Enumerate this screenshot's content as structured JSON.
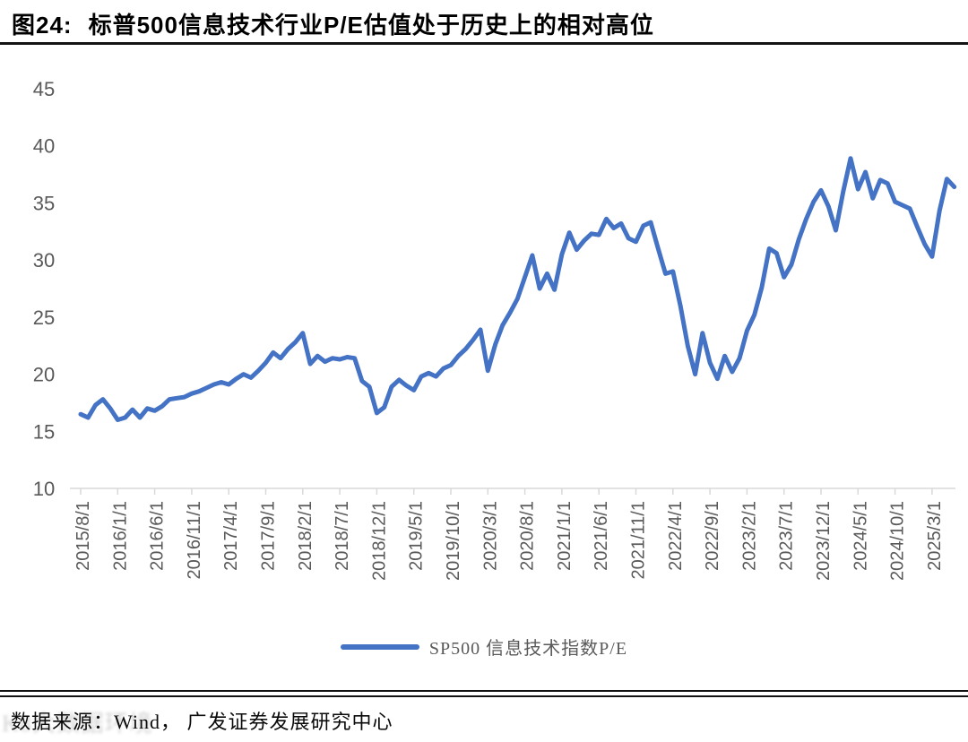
{
  "header": {
    "figure_label": "图24:",
    "title": "标普500信息技术行业P/E估值处于历史上的相对高位"
  },
  "legend": {
    "label": "SP500  信息技术指数P/E"
  },
  "footer": {
    "source": "数据来源：Wind， 广发证券发展研究中心"
  },
  "watermark": {
    "text": "K8大数据环境"
  },
  "chart_data": {
    "type": "line",
    "title": "标普500信息技术行业P/E估值处于历史上的相对高位",
    "xlabel": "",
    "ylabel": "",
    "ylim": [
      10,
      45
    ],
    "y_ticks": [
      10,
      15,
      20,
      25,
      30,
      35,
      40,
      45
    ],
    "grid": false,
    "legend_position": "bottom",
    "axis_color": "#D9D9D9",
    "label_color": "#595959",
    "x_tick_interval_months": 5,
    "x_tick_labels": [
      "2015/8/1",
      "2016/1/1",
      "2016/6/1",
      "2016/11/1",
      "2017/4/1",
      "2017/9/1",
      "2018/2/1",
      "2018/7/1",
      "2018/12/1",
      "2019/5/1",
      "2019/10/1",
      "2020/3/1",
      "2020/8/1",
      "2021/1/1",
      "2021/6/1",
      "2021/11/1",
      "2022/4/1",
      "2022/9/1",
      "2023/2/1",
      "2023/7/1",
      "2023/12/1",
      "2024/5/1",
      "2024/10/1",
      "2025/3/1"
    ],
    "series": [
      {
        "name": "SP500 信息技术指数P/E",
        "color": "#4472C4",
        "start": "2015/8",
        "frequency": "monthly",
        "values": [
          16.5,
          16.2,
          17.3,
          17.8,
          17.0,
          16.0,
          16.2,
          16.9,
          16.2,
          17.0,
          16.8,
          17.2,
          17.8,
          17.9,
          18.0,
          18.3,
          18.5,
          18.8,
          19.1,
          19.3,
          19.1,
          19.6,
          20.0,
          19.7,
          20.3,
          21.0,
          21.9,
          21.4,
          22.2,
          22.8,
          23.6,
          20.9,
          21.6,
          21.1,
          21.4,
          21.3,
          21.5,
          21.4,
          19.4,
          18.9,
          16.6,
          17.1,
          18.9,
          19.5,
          19.0,
          18.6,
          19.8,
          20.1,
          19.8,
          20.5,
          20.8,
          21.6,
          22.2,
          23.0,
          23.9,
          20.3,
          22.6,
          24.3,
          25.4,
          26.6,
          28.5,
          30.4,
          27.5,
          28.8,
          27.4,
          30.5,
          32.4,
          30.9,
          31.7,
          32.3,
          32.2,
          33.6,
          32.8,
          33.2,
          31.9,
          31.6,
          33.0,
          33.3,
          31.0,
          28.8,
          29.0,
          26.0,
          22.5,
          20.0,
          23.6,
          21.0,
          19.6,
          21.6,
          20.2,
          21.4,
          23.8,
          25.2,
          27.6,
          31.0,
          30.6,
          28.5,
          29.6,
          31.8,
          33.6,
          35.1,
          36.1,
          34.7,
          32.6,
          36.0,
          38.9,
          36.2,
          37.7,
          35.4,
          37.0,
          36.7,
          35.1,
          34.8,
          34.5,
          32.9,
          31.4,
          30.3,
          34.3,
          37.1,
          36.4
        ]
      }
    ]
  }
}
